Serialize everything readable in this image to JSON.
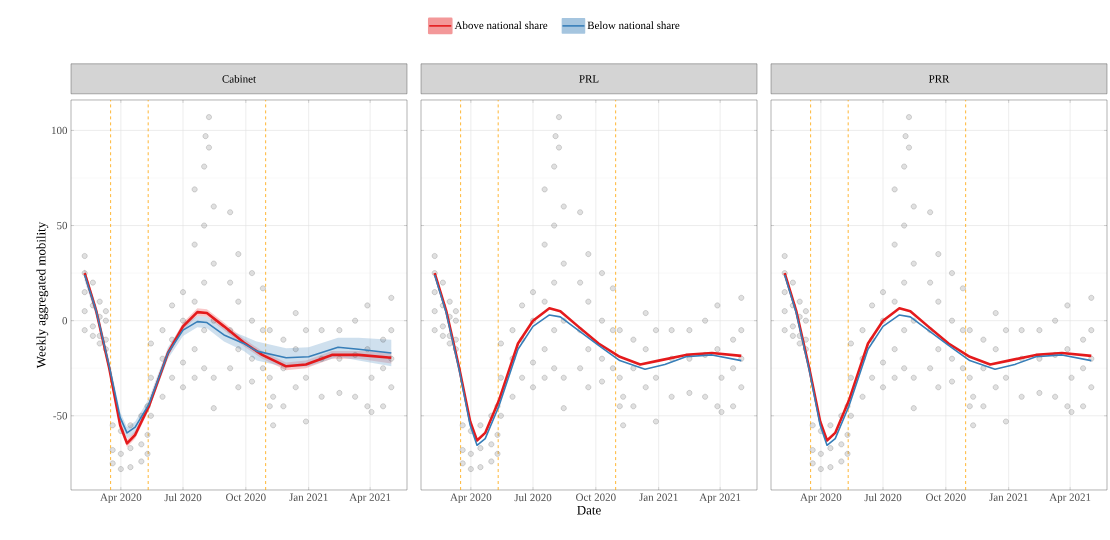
{
  "chart_data": [
    {
      "type": "scatter",
      "title": "Cabinet",
      "ylabel": "Weekly aggregated mobility",
      "legend": "top",
      "grid": true,
      "xlim": [
        "2020-01-19",
        "2021-05-25"
      ],
      "ylim": [
        -89,
        116
      ],
      "xticks": [
        {
          "value": "2020-04-01",
          "label": "Apr 2020"
        },
        {
          "value": "2020-07-01",
          "label": "Jul 2020"
        },
        {
          "value": "2020-10-01",
          "label": "Oct 2020"
        },
        {
          "value": "2021-01-01",
          "label": "Jan 2021"
        },
        {
          "value": "2021-04-01",
          "label": "Apr 2021"
        }
      ],
      "yticks": [
        -50,
        0,
        50,
        100
      ],
      "ref_lines": [
        {
          "axis": "x",
          "value": "2020-03-17",
          "color": "#ffa500",
          "line_style": "dashed"
        },
        {
          "axis": "x",
          "value": "2020-05-11",
          "color": "#ffa500",
          "line_style": "dashed"
        },
        {
          "axis": "x",
          "value": "2020-10-30",
          "color": "#ffa500",
          "line_style": "dashed"
        }
      ],
      "series": [
        {
          "color": "#555555",
          "marker": "circle",
          "x": [
            "2020-02-08",
            "2020-02-08",
            "2020-02-08",
            "2020-02-08",
            "2020-02-08",
            "2020-02-20",
            "2020-02-20",
            "2020-02-20",
            "2020-02-20",
            "2020-03-01",
            "2020-03-01",
            "2020-03-01",
            "2020-03-01",
            "2020-03-10",
            "2020-03-10",
            "2020-03-10",
            "2020-03-10",
            "2020-03-20",
            "2020-03-20",
            "2020-03-20",
            "2020-04-01",
            "2020-04-01",
            "2020-04-01",
            "2020-04-15",
            "2020-04-15",
            "2020-04-15",
            "2020-05-01",
            "2020-05-01",
            "2020-05-01",
            "2020-05-10",
            "2020-05-10",
            "2020-05-10",
            "2020-05-15",
            "2020-05-15",
            "2020-05-15",
            "2020-06-01",
            "2020-06-01",
            "2020-06-01",
            "2020-06-15",
            "2020-06-15",
            "2020-06-15",
            "2020-07-01",
            "2020-07-01",
            "2020-07-01",
            "2020-07-01",
            "2020-07-18",
            "2020-07-18",
            "2020-07-18",
            "2020-07-18",
            "2020-07-18",
            "2020-08-01",
            "2020-08-01",
            "2020-08-01",
            "2020-08-01",
            "2020-08-01",
            "2020-08-03",
            "2020-08-08",
            "2020-08-08",
            "2020-08-15",
            "2020-08-15",
            "2020-08-15",
            "2020-08-15",
            "2020-08-15",
            "2020-09-08",
            "2020-09-08",
            "2020-09-08",
            "2020-09-08",
            "2020-09-20",
            "2020-09-20",
            "2020-09-20",
            "2020-09-20",
            "2020-10-10",
            "2020-10-10",
            "2020-10-10",
            "2020-10-10",
            "2020-10-26",
            "2020-10-26",
            "2020-10-26",
            "2020-11-05",
            "2020-11-05",
            "2020-11-05",
            "2020-11-10",
            "2020-11-10",
            "2020-11-25",
            "2020-11-25",
            "2020-11-25",
            "2020-12-13",
            "2020-12-13",
            "2020-12-13",
            "2020-12-28",
            "2020-12-28",
            "2020-12-28",
            "2021-01-20",
            "2021-01-20",
            "2021-01-20",
            "2021-02-15",
            "2021-02-15",
            "2021-02-15",
            "2021-03-10",
            "2021-03-10",
            "2021-03-10",
            "2021-03-28",
            "2021-03-28",
            "2021-03-28",
            "2021-04-03",
            "2021-04-03",
            "2021-04-20",
            "2021-04-20",
            "2021-04-20",
            "2021-05-02",
            "2021-05-02",
            "2021-05-02",
            "2021-05-02"
          ],
          "values": [
            25,
            34,
            15,
            5,
            -5,
            20,
            8,
            -3,
            -8,
            10,
            2,
            -8,
            -12,
            5,
            0,
            -10,
            -15,
            -55,
            -68,
            -75,
            -58,
            -70,
            -78,
            -55,
            -67,
            -77,
            -50,
            -65,
            -74,
            -45,
            -60,
            -70,
            -12,
            -30,
            -50,
            -5,
            -20,
            -40,
            8,
            -10,
            -30,
            15,
            0,
            -22,
            -35,
            69,
            40,
            10,
            -15,
            -30,
            81,
            50,
            20,
            -5,
            -25,
            97,
            107,
            91,
            60,
            30,
            0,
            -30,
            -46,
            57,
            20,
            -5,
            -25,
            35,
            10,
            -15,
            -35,
            25,
            0,
            -20,
            -32,
            17,
            -5,
            -25,
            -5,
            -30,
            -45,
            -55,
            -40,
            -10,
            -25,
            -45,
            4,
            -15,
            -35,
            -5,
            -30,
            -53,
            -5,
            -20,
            -40,
            -5,
            -20,
            -38,
            0,
            -18,
            -40,
            8,
            -15,
            -45,
            -48,
            -30,
            -10,
            -25,
            -45,
            12,
            -5,
            -20,
            -35
          ]
        },
        {
          "type": "line",
          "name": "Above national share",
          "color": "#e41a1c",
          "marker": "none",
          "line_style": "solid",
          "x": [
            "2020-02-08",
            "2020-02-25",
            "2020-03-15",
            "2020-03-31",
            "2020-04-10",
            "2020-04-22",
            "2020-05-12",
            "2020-06-09",
            "2020-07-01",
            "2020-07-22",
            "2020-08-05",
            "2020-08-30",
            "2020-09-28",
            "2020-10-25",
            "2020-11-29",
            "2020-12-28",
            "2021-02-04",
            "2021-03-15",
            "2021-05-02"
          ],
          "values": [
            25,
            5,
            -25,
            -55,
            -64.5,
            -60,
            -45,
            -17,
            -3,
            4.5,
            4,
            -3,
            -11.5,
            -18,
            -24,
            -23,
            -18,
            -18,
            -19.5
          ],
          "lower": [
            23,
            3,
            -27,
            -57,
            -66.5,
            -62,
            -47,
            -19,
            -5,
            2.5,
            2,
            -5,
            -13.5,
            -20,
            -26,
            -25,
            -20,
            -20,
            -22.5
          ],
          "upper": [
            27,
            7,
            -23,
            -53,
            -62.5,
            -58,
            -43,
            -15,
            -1,
            6.5,
            6,
            -1,
            -9.5,
            -16,
            -22,
            -21,
            -16,
            -16,
            -16.5
          ]
        },
        {
          "type": "line",
          "name": "Below national share",
          "color": "#377eb8",
          "marker": "none",
          "line_style": "solid",
          "x": [
            "2020-02-08",
            "2020-02-25",
            "2020-03-15",
            "2020-03-31",
            "2020-04-10",
            "2020-04-22",
            "2020-05-12",
            "2020-06-09",
            "2020-07-01",
            "2020-07-22",
            "2020-08-05",
            "2020-08-30",
            "2020-09-28",
            "2020-10-17",
            "2020-11-29",
            "2021-01-01",
            "2021-02-13",
            "2021-03-15",
            "2021-05-02"
          ],
          "values": [
            24,
            5,
            -24,
            -51,
            -59,
            -56,
            -44,
            -17,
            -5,
            -0.5,
            -1,
            -7.5,
            -12,
            -16,
            -19.5,
            -19,
            -14,
            -15,
            -17
          ],
          "lower": [
            21,
            2,
            -27,
            -54,
            -62,
            -59,
            -47,
            -20,
            -8,
            -3.5,
            -4,
            -11,
            -16,
            -21,
            -24.5,
            -24,
            -19,
            -21,
            -24
          ],
          "upper": [
            27,
            8,
            -21,
            -48,
            -56,
            -53,
            -41,
            -14,
            -2,
            2.5,
            2,
            -4,
            -8,
            -11,
            -14.5,
            -14,
            -9,
            -9,
            -10
          ]
        }
      ]
    },
    {
      "type": "scatter",
      "title": "PRL",
      "xlabel": "Date",
      "tick_labels": "x",
      "grid": true,
      "xlim": [
        "2020-01-19",
        "2021-05-25"
      ],
      "ylim": [
        -89,
        116
      ],
      "xticks": [
        {
          "value": "2020-04-01",
          "label": "Apr 2020"
        },
        {
          "value": "2020-07-01",
          "label": "Jul 2020"
        },
        {
          "value": "2020-10-01",
          "label": "Oct 2020"
        },
        {
          "value": "2021-01-01",
          "label": "Jan 2021"
        },
        {
          "value": "2021-04-01",
          "label": "Apr 2021"
        }
      ],
      "yticks": [
        -50,
        0,
        50,
        100
      ],
      "ref_lines": [
        {
          "axis": "x",
          "value": "2020-03-17",
          "color": "#ffa500",
          "line_style": "dashed"
        },
        {
          "axis": "x",
          "value": "2020-05-11",
          "color": "#ffa500",
          "line_style": "dashed"
        },
        {
          "axis": "x",
          "value": "2020-10-30",
          "color": "#ffa500",
          "line_style": "dashed"
        }
      ],
      "series": [
        {
          "color": "#555555",
          "marker": "circle",
          "x": [
            "2020-02-08",
            "2020-02-08",
            "2020-02-08",
            "2020-02-08",
            "2020-02-08",
            "2020-02-20",
            "2020-02-20",
            "2020-02-20",
            "2020-02-20",
            "2020-03-01",
            "2020-03-01",
            "2020-03-01",
            "2020-03-01",
            "2020-03-10",
            "2020-03-10",
            "2020-03-10",
            "2020-03-10",
            "2020-03-20",
            "2020-03-20",
            "2020-03-20",
            "2020-04-01",
            "2020-04-01",
            "2020-04-01",
            "2020-04-15",
            "2020-04-15",
            "2020-04-15",
            "2020-05-01",
            "2020-05-01",
            "2020-05-01",
            "2020-05-10",
            "2020-05-10",
            "2020-05-10",
            "2020-05-15",
            "2020-05-15",
            "2020-05-15",
            "2020-06-01",
            "2020-06-01",
            "2020-06-01",
            "2020-06-15",
            "2020-06-15",
            "2020-06-15",
            "2020-07-01",
            "2020-07-01",
            "2020-07-01",
            "2020-07-01",
            "2020-07-18",
            "2020-07-18",
            "2020-07-18",
            "2020-07-18",
            "2020-07-18",
            "2020-08-01",
            "2020-08-01",
            "2020-08-01",
            "2020-08-01",
            "2020-08-01",
            "2020-08-03",
            "2020-08-08",
            "2020-08-08",
            "2020-08-15",
            "2020-08-15",
            "2020-08-15",
            "2020-08-15",
            "2020-08-15",
            "2020-09-08",
            "2020-09-08",
            "2020-09-08",
            "2020-09-08",
            "2020-09-20",
            "2020-09-20",
            "2020-09-20",
            "2020-09-20",
            "2020-10-10",
            "2020-10-10",
            "2020-10-10",
            "2020-10-10",
            "2020-10-26",
            "2020-10-26",
            "2020-10-26",
            "2020-11-05",
            "2020-11-05",
            "2020-11-05",
            "2020-11-10",
            "2020-11-10",
            "2020-11-25",
            "2020-11-25",
            "2020-11-25",
            "2020-12-13",
            "2020-12-13",
            "2020-12-13",
            "2020-12-28",
            "2020-12-28",
            "2020-12-28",
            "2021-01-20",
            "2021-01-20",
            "2021-01-20",
            "2021-02-15",
            "2021-02-15",
            "2021-02-15",
            "2021-03-10",
            "2021-03-10",
            "2021-03-10",
            "2021-03-28",
            "2021-03-28",
            "2021-03-28",
            "2021-04-03",
            "2021-04-03",
            "2021-04-20",
            "2021-04-20",
            "2021-04-20",
            "2021-05-02",
            "2021-05-02",
            "2021-05-02",
            "2021-05-02"
          ],
          "values": [
            25,
            34,
            15,
            5,
            -5,
            20,
            8,
            -3,
            -8,
            10,
            2,
            -8,
            -12,
            5,
            0,
            -10,
            -15,
            -55,
            -68,
            -75,
            -58,
            -70,
            -78,
            -55,
            -67,
            -77,
            -50,
            -65,
            -74,
            -45,
            -60,
            -70,
            -12,
            -30,
            -50,
            -5,
            -20,
            -40,
            8,
            -10,
            -30,
            15,
            0,
            -22,
            -35,
            69,
            40,
            10,
            -15,
            -30,
            81,
            50,
            20,
            -5,
            -25,
            97,
            107,
            91,
            60,
            30,
            0,
            -30,
            -46,
            57,
            20,
            -5,
            -25,
            35,
            10,
            -15,
            -35,
            25,
            0,
            -20,
            -32,
            17,
            -5,
            -25,
            -5,
            -30,
            -45,
            -55,
            -40,
            -10,
            -25,
            -45,
            4,
            -15,
            -35,
            -5,
            -30,
            -53,
            -5,
            -20,
            -40,
            -5,
            -20,
            -38,
            0,
            -18,
            -40,
            8,
            -15,
            -45,
            -48,
            -30,
            -10,
            -25,
            -45,
            12,
            -5,
            -20,
            -35
          ]
        },
        {
          "type": "line",
          "color": "#e41a1c",
          "marker": "none",
          "line_style": "solid",
          "x": [
            "2020-02-08",
            "2020-02-25",
            "2020-03-15",
            "2020-03-31",
            "2020-04-10",
            "2020-04-22",
            "2020-05-12",
            "2020-06-09",
            "2020-07-01",
            "2020-07-25",
            "2020-08-10",
            "2020-09-05",
            "2020-10-05",
            "2020-11-05",
            "2020-12-05",
            "2021-01-01",
            "2021-02-10",
            "2021-03-20",
            "2021-05-02"
          ],
          "values": [
            25,
            5,
            -25,
            -53,
            -63,
            -59,
            -42,
            -12,
            0,
            6.5,
            5,
            -3,
            -12,
            -19,
            -23,
            -21,
            -18,
            -17,
            -18.5
          ]
        },
        {
          "type": "line",
          "color": "#377eb8",
          "marker": "none",
          "line_style": "solid",
          "x": [
            "2020-02-08",
            "2020-02-25",
            "2020-03-15",
            "2020-03-31",
            "2020-04-10",
            "2020-04-22",
            "2020-05-12",
            "2020-06-09",
            "2020-07-01",
            "2020-07-25",
            "2020-08-10",
            "2020-09-05",
            "2020-10-05",
            "2020-11-05",
            "2020-12-12",
            "2021-01-10",
            "2021-02-10",
            "2021-03-20",
            "2021-05-02"
          ],
          "values": [
            24,
            4,
            -26,
            -55,
            -65.5,
            -62,
            -45,
            -15,
            -3,
            3,
            2,
            -5,
            -13,
            -21,
            -25.5,
            -23,
            -19,
            -18,
            -21
          ]
        }
      ]
    },
    {
      "type": "scatter",
      "title": "PRR",
      "tick_labels": "x",
      "grid": true,
      "xlim": [
        "2020-01-19",
        "2021-05-25"
      ],
      "ylim": [
        -89,
        116
      ],
      "xticks": [
        {
          "value": "2020-04-01",
          "label": "Apr 2020"
        },
        {
          "value": "2020-07-01",
          "label": "Jul 2020"
        },
        {
          "value": "2020-10-01",
          "label": "Oct 2020"
        },
        {
          "value": "2021-01-01",
          "label": "Jan 2021"
        },
        {
          "value": "2021-04-01",
          "label": "Apr 2021"
        }
      ],
      "yticks": [
        -50,
        0,
        50,
        100
      ],
      "ref_lines": [
        {
          "axis": "x",
          "value": "2020-03-17",
          "color": "#ffa500",
          "line_style": "dashed"
        },
        {
          "axis": "x",
          "value": "2020-05-11",
          "color": "#ffa500",
          "line_style": "dashed"
        },
        {
          "axis": "x",
          "value": "2020-10-30",
          "color": "#ffa500",
          "line_style": "dashed"
        }
      ],
      "series": [
        {
          "color": "#555555",
          "marker": "circle",
          "x": [
            "2020-02-08",
            "2020-02-08",
            "2020-02-08",
            "2020-02-08",
            "2020-02-08",
            "2020-02-20",
            "2020-02-20",
            "2020-02-20",
            "2020-02-20",
            "2020-03-01",
            "2020-03-01",
            "2020-03-01",
            "2020-03-01",
            "2020-03-10",
            "2020-03-10",
            "2020-03-10",
            "2020-03-10",
            "2020-03-20",
            "2020-03-20",
            "2020-03-20",
            "2020-04-01",
            "2020-04-01",
            "2020-04-01",
            "2020-04-15",
            "2020-04-15",
            "2020-04-15",
            "2020-05-01",
            "2020-05-01",
            "2020-05-01",
            "2020-05-10",
            "2020-05-10",
            "2020-05-10",
            "2020-05-15",
            "2020-05-15",
            "2020-05-15",
            "2020-06-01",
            "2020-06-01",
            "2020-06-01",
            "2020-06-15",
            "2020-06-15",
            "2020-06-15",
            "2020-07-01",
            "2020-07-01",
            "2020-07-01",
            "2020-07-01",
            "2020-07-18",
            "2020-07-18",
            "2020-07-18",
            "2020-07-18",
            "2020-07-18",
            "2020-08-01",
            "2020-08-01",
            "2020-08-01",
            "2020-08-01",
            "2020-08-01",
            "2020-08-03",
            "2020-08-08",
            "2020-08-08",
            "2020-08-15",
            "2020-08-15",
            "2020-08-15",
            "2020-08-15",
            "2020-08-15",
            "2020-09-08",
            "2020-09-08",
            "2020-09-08",
            "2020-09-08",
            "2020-09-20",
            "2020-09-20",
            "2020-09-20",
            "2020-09-20",
            "2020-10-10",
            "2020-10-10",
            "2020-10-10",
            "2020-10-10",
            "2020-10-26",
            "2020-10-26",
            "2020-10-26",
            "2020-11-05",
            "2020-11-05",
            "2020-11-05",
            "2020-11-10",
            "2020-11-10",
            "2020-11-25",
            "2020-11-25",
            "2020-11-25",
            "2020-12-13",
            "2020-12-13",
            "2020-12-13",
            "2020-12-28",
            "2020-12-28",
            "2020-12-28",
            "2021-01-20",
            "2021-01-20",
            "2021-01-20",
            "2021-02-15",
            "2021-02-15",
            "2021-02-15",
            "2021-03-10",
            "2021-03-10",
            "2021-03-10",
            "2021-03-28",
            "2021-03-28",
            "2021-03-28",
            "2021-04-03",
            "2021-04-03",
            "2021-04-20",
            "2021-04-20",
            "2021-04-20",
            "2021-05-02",
            "2021-05-02",
            "2021-05-02",
            "2021-05-02"
          ],
          "values": [
            25,
            34,
            15,
            5,
            -5,
            20,
            8,
            -3,
            -8,
            10,
            2,
            -8,
            -12,
            5,
            0,
            -10,
            -15,
            -55,
            -68,
            -75,
            -58,
            -70,
            -78,
            -55,
            -67,
            -77,
            -50,
            -65,
            -74,
            -45,
            -60,
            -70,
            -12,
            -30,
            -50,
            -5,
            -20,
            -40,
            8,
            -10,
            -30,
            15,
            0,
            -22,
            -35,
            69,
            40,
            10,
            -15,
            -30,
            81,
            50,
            20,
            -5,
            -25,
            97,
            107,
            91,
            60,
            30,
            0,
            -30,
            -46,
            57,
            20,
            -5,
            -25,
            35,
            10,
            -15,
            -35,
            25,
            0,
            -20,
            -32,
            17,
            -5,
            -25,
            -5,
            -30,
            -45,
            -55,
            -40,
            -10,
            -25,
            -45,
            4,
            -15,
            -35,
            -5,
            -30,
            -53,
            -5,
            -20,
            -40,
            -5,
            -20,
            -38,
            0,
            -18,
            -40,
            8,
            -15,
            -45,
            -48,
            -30,
            -10,
            -25,
            -45,
            12,
            -5,
            -20,
            -35
          ]
        },
        {
          "type": "line",
          "color": "#e41a1c",
          "marker": "none",
          "line_style": "solid",
          "x": [
            "2020-02-08",
            "2020-02-25",
            "2020-03-15",
            "2020-03-31",
            "2020-04-10",
            "2020-04-22",
            "2020-05-12",
            "2020-06-09",
            "2020-07-01",
            "2020-07-25",
            "2020-08-10",
            "2020-09-05",
            "2020-10-05",
            "2020-11-05",
            "2020-12-05",
            "2021-01-01",
            "2021-02-10",
            "2021-03-20",
            "2021-05-02"
          ],
          "values": [
            25,
            5,
            -25,
            -53,
            -63,
            -59,
            -42,
            -12,
            0,
            6.5,
            5,
            -3,
            -12,
            -19,
            -23,
            -21,
            -18,
            -17,
            -18.5
          ]
        },
        {
          "type": "line",
          "color": "#377eb8",
          "marker": "none",
          "line_style": "solid",
          "x": [
            "2020-02-08",
            "2020-02-25",
            "2020-03-15",
            "2020-03-31",
            "2020-04-10",
            "2020-04-22",
            "2020-05-12",
            "2020-06-09",
            "2020-07-01",
            "2020-07-25",
            "2020-08-10",
            "2020-09-05",
            "2020-10-05",
            "2020-11-05",
            "2020-12-12",
            "2021-01-10",
            "2021-02-10",
            "2021-03-20",
            "2021-05-02"
          ],
          "values": [
            24,
            4,
            -26,
            -55,
            -65.5,
            -62,
            -45,
            -15,
            -3,
            3,
            2,
            -5,
            -13,
            -21,
            -25.5,
            -23,
            -19,
            -18,
            -21
          ]
        }
      ]
    }
  ]
}
